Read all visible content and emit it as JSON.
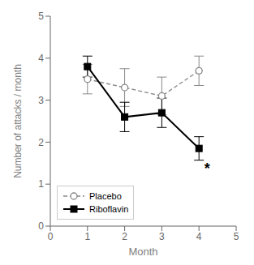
{
  "chart_data": {
    "type": "line",
    "x": [
      1,
      2,
      3,
      4
    ],
    "series": [
      {
        "name": "Placebo",
        "color": "#888888",
        "values": [
          3.5,
          3.3,
          3.1,
          3.7
        ],
        "yerr": [
          0.35,
          0.45,
          0.45,
          0.35
        ],
        "marker": "circle",
        "line_style": "dashed"
      },
      {
        "name": "Riboflavin",
        "color": "#000000",
        "values": [
          3.8,
          2.6,
          2.7,
          1.85
        ],
        "yerr": [
          0.25,
          0.35,
          0.35,
          0.28
        ],
        "marker": "square",
        "line_style": "solid"
      }
    ],
    "xlim": [
      0,
      5
    ],
    "ylim": [
      0,
      5
    ],
    "xticks": [
      0,
      1,
      2,
      3,
      4,
      5
    ],
    "yticks": [
      0,
      1,
      2,
      3,
      4,
      5
    ],
    "xlabel": "Month",
    "ylabel": "Number of attacks / month",
    "annotations": [
      {
        "text": "*",
        "x": 4.22,
        "y": 1.38
      }
    ],
    "legend": "lower left"
  }
}
